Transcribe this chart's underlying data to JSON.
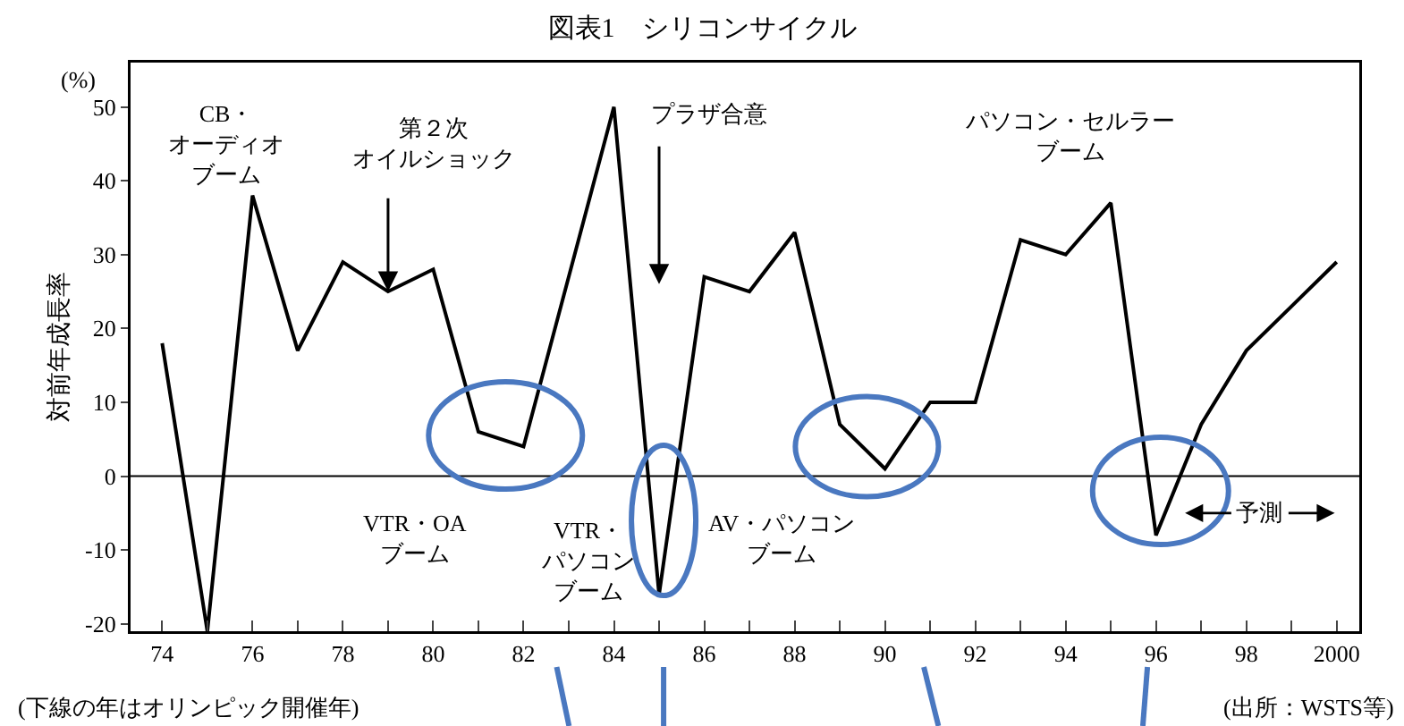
{
  "chart_data": {
    "type": "line",
    "title": "図表1　シリコンサイクル",
    "ylabel": "対前年成長率",
    "x": [
      1974,
      1975,
      1976,
      1977,
      1978,
      1979,
      1980,
      1981,
      1982,
      1983,
      1984,
      1985,
      1986,
      1987,
      1988,
      1989,
      1990,
      1991,
      1992,
      1993,
      1994,
      1995,
      1996,
      1997,
      1998,
      1999,
      2000
    ],
    "series": [
      {
        "color": "#000000",
        "values": [
          18,
          -21,
          38,
          17,
          29,
          25,
          28,
          6,
          4,
          27,
          50,
          -16,
          27,
          25,
          33,
          7,
          1,
          10,
          10,
          32,
          30,
          37,
          -8,
          7,
          17,
          23,
          29
        ]
      }
    ],
    "xlim": [
      1973.3,
      2000.5
    ],
    "xticks": [
      {
        "value": 1974,
        "label": "74"
      },
      {
        "value": 1975,
        "label": null
      },
      {
        "value": 1976,
        "label": "76"
      },
      {
        "value": 1977,
        "label": null
      },
      {
        "value": 1978,
        "label": "78"
      },
      {
        "value": 1979,
        "label": null
      },
      {
        "value": 1980,
        "label": "80"
      },
      {
        "value": 1981,
        "label": null
      },
      {
        "value": 1982,
        "label": "82"
      },
      {
        "value": 1983,
        "label": null
      },
      {
        "value": 1984,
        "label": "84"
      },
      {
        "value": 1985,
        "label": null
      },
      {
        "value": 1986,
        "label": "86"
      },
      {
        "value": 1987,
        "label": null
      },
      {
        "value": 1988,
        "label": "88"
      },
      {
        "value": 1989,
        "label": null
      },
      {
        "value": 1990,
        "label": "90"
      },
      {
        "value": 1991,
        "label": null
      },
      {
        "value": 1992,
        "label": "92"
      },
      {
        "value": 1993,
        "label": null
      },
      {
        "value": 1994,
        "label": "94"
      },
      {
        "value": 1995,
        "label": null
      },
      {
        "value": 1996,
        "label": "96"
      },
      {
        "value": 1997,
        "label": null
      },
      {
        "value": 1998,
        "label": "98"
      },
      {
        "value": 1999,
        "label": null
      },
      {
        "value": 2000,
        "label": "2000"
      }
    ],
    "ylim": [
      -21,
      56
    ],
    "yticks": [
      -20,
      -10,
      0,
      10,
      20,
      30,
      40,
      50
    ],
    "ref_lines": [
      {
        "axis": "y",
        "value": 0
      }
    ],
    "annotations": [
      "CB・オーディオブーム",
      "VTR・OAブーム",
      "VTR・パソコンブーム",
      "AV・パソコンブーム",
      "パソコン・セルラーブーム",
      "(%)",
      "(下線の年はオリンピック開催年)",
      "(出所：WSTS等)",
      {
        "text": "第２次オイルショック",
        "x": 1979,
        "y": 25
      },
      "プラザ合意",
      "予測"
    ],
    "grid": false,
    "marker": "none",
    "line_style": "solid"
  }
}
